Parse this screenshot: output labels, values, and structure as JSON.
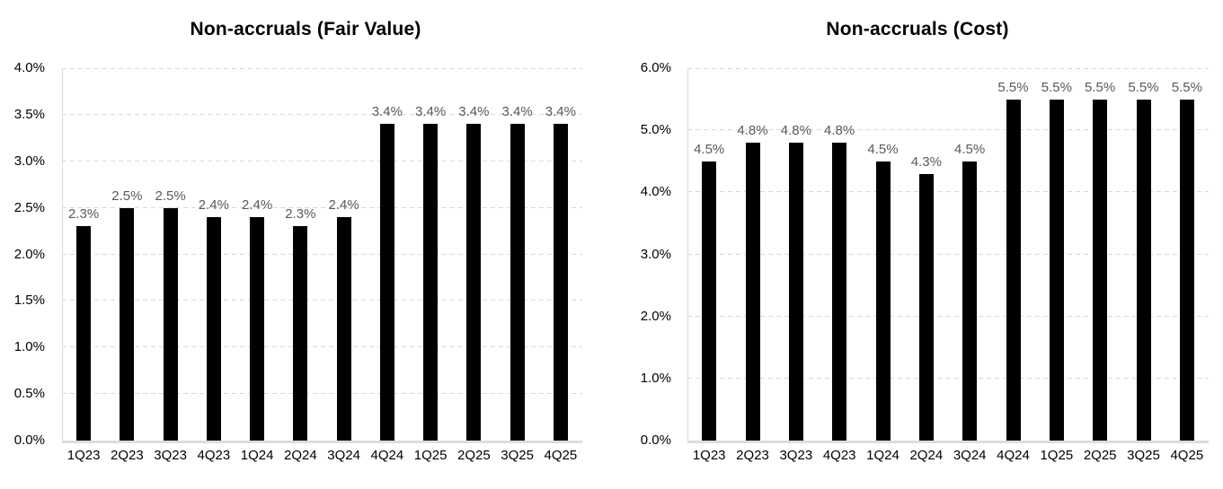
{
  "page": {
    "background": "#ffffff"
  },
  "colors": {
    "bar": "#000000",
    "data_label": "#595959",
    "axis_tick_label": "#000000",
    "title": "#000000",
    "gridline": "#d9d9d9",
    "axis_line": "#dcdcdc"
  },
  "chart_data": [
    {
      "type": "bar",
      "title": "Non-accruals (Fair Value)",
      "categories": [
        "1Q23",
        "2Q23",
        "3Q23",
        "4Q23",
        "1Q24",
        "2Q24",
        "3Q24",
        "4Q24",
        "1Q25",
        "2Q25",
        "3Q25",
        "4Q25"
      ],
      "values": [
        2.3,
        2.5,
        2.5,
        2.4,
        2.4,
        2.3,
        2.4,
        3.4,
        3.4,
        3.4,
        3.4,
        3.4
      ],
      "labels": [
        "2.3%",
        "2.5%",
        "2.5%",
        "2.4%",
        "2.4%",
        "2.3%",
        "2.4%",
        "3.4%",
        "3.4%",
        "3.4%",
        "3.4%",
        "3.4%"
      ],
      "xlabel": "",
      "ylabel": "",
      "ylim": [
        0,
        4.0
      ],
      "ytick_step": 0.5,
      "ytick_labels": [
        "0.0%",
        "0.5%",
        "1.0%",
        "1.5%",
        "2.0%",
        "2.5%",
        "3.0%",
        "3.5%",
        "4.0%"
      ],
      "grid": "dashed-horizontal",
      "legend": "none",
      "bar_color": "#000000",
      "label_color": "#595959"
    },
    {
      "type": "bar",
      "title": "Non-accruals (Cost)",
      "categories": [
        "1Q23",
        "2Q23",
        "3Q23",
        "4Q23",
        "1Q24",
        "2Q24",
        "3Q24",
        "4Q24",
        "1Q25",
        "2Q25",
        "3Q25",
        "4Q25"
      ],
      "values": [
        4.5,
        4.8,
        4.8,
        4.8,
        4.5,
        4.3,
        4.5,
        5.5,
        5.5,
        5.5,
        5.5,
        5.5
      ],
      "labels": [
        "4.5%",
        "4.8%",
        "4.8%",
        "4.8%",
        "4.5%",
        "4.3%",
        "4.5%",
        "5.5%",
        "5.5%",
        "5.5%",
        "5.5%",
        "5.5%"
      ],
      "xlabel": "",
      "ylabel": "",
      "ylim": [
        0,
        6.0
      ],
      "ytick_step": 1.0,
      "ytick_labels": [
        "0.0%",
        "1.0%",
        "2.0%",
        "3.0%",
        "4.0%",
        "5.0%",
        "6.0%"
      ],
      "grid": "dashed-horizontal",
      "legend": "none",
      "bar_color": "#000000",
      "label_color": "#595959"
    }
  ]
}
